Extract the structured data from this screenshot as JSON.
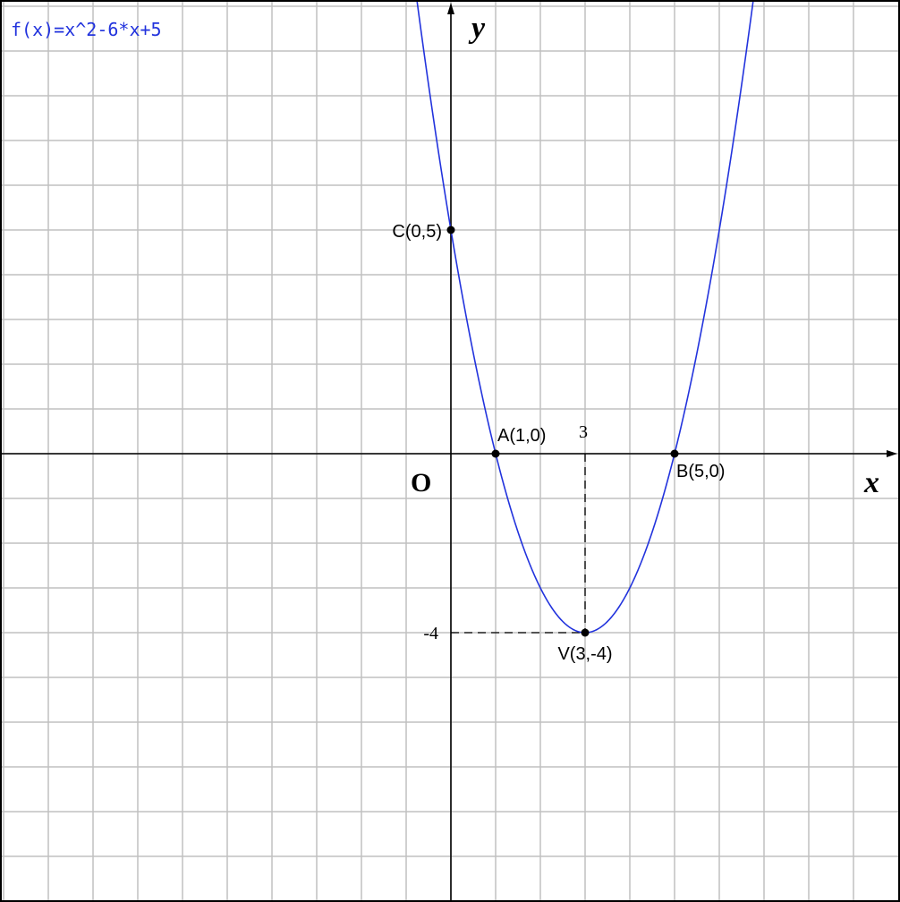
{
  "formula": "f(x)=x^2-6*x+5",
  "colors": {
    "curve": "#2233dd",
    "formula": "#2233dd",
    "grid": "#c0c0c0",
    "axis": "#000000",
    "border": "#000000"
  },
  "chart_data": {
    "type": "line",
    "function": "x^2-6*x+5",
    "xlabel": "x",
    "ylabel": "y",
    "origin_label": "O",
    "xlim": [
      -10,
      10
    ],
    "ylim": [
      -10,
      10
    ],
    "grid": true,
    "series": [
      {
        "name": "f(x)=x^2-6*x+5",
        "x": [
          -0.5,
          0,
          1,
          2,
          3,
          4,
          5,
          6,
          6.5
        ],
        "y": [
          8.25,
          5,
          0,
          -3,
          -4,
          -3,
          0,
          5,
          8.25
        ]
      }
    ],
    "points": [
      {
        "label": "C(0,5)",
        "x": 0,
        "y": 5
      },
      {
        "label": "A(1,0)",
        "x": 1,
        "y": 0
      },
      {
        "label": "B(5,0)",
        "x": 5,
        "y": 0
      },
      {
        "label": "V(3,-4)",
        "x": 3,
        "y": -4
      }
    ],
    "tick_labels": [
      {
        "axis": "x",
        "value": 3,
        "text": "3"
      },
      {
        "axis": "y",
        "value": -4,
        "text": "-4"
      }
    ],
    "guides": [
      {
        "from": [
          3,
          0
        ],
        "to": [
          3,
          -4
        ],
        "style": "dashed"
      },
      {
        "from": [
          0,
          -4
        ],
        "to": [
          3,
          -4
        ],
        "style": "dashed"
      }
    ]
  }
}
